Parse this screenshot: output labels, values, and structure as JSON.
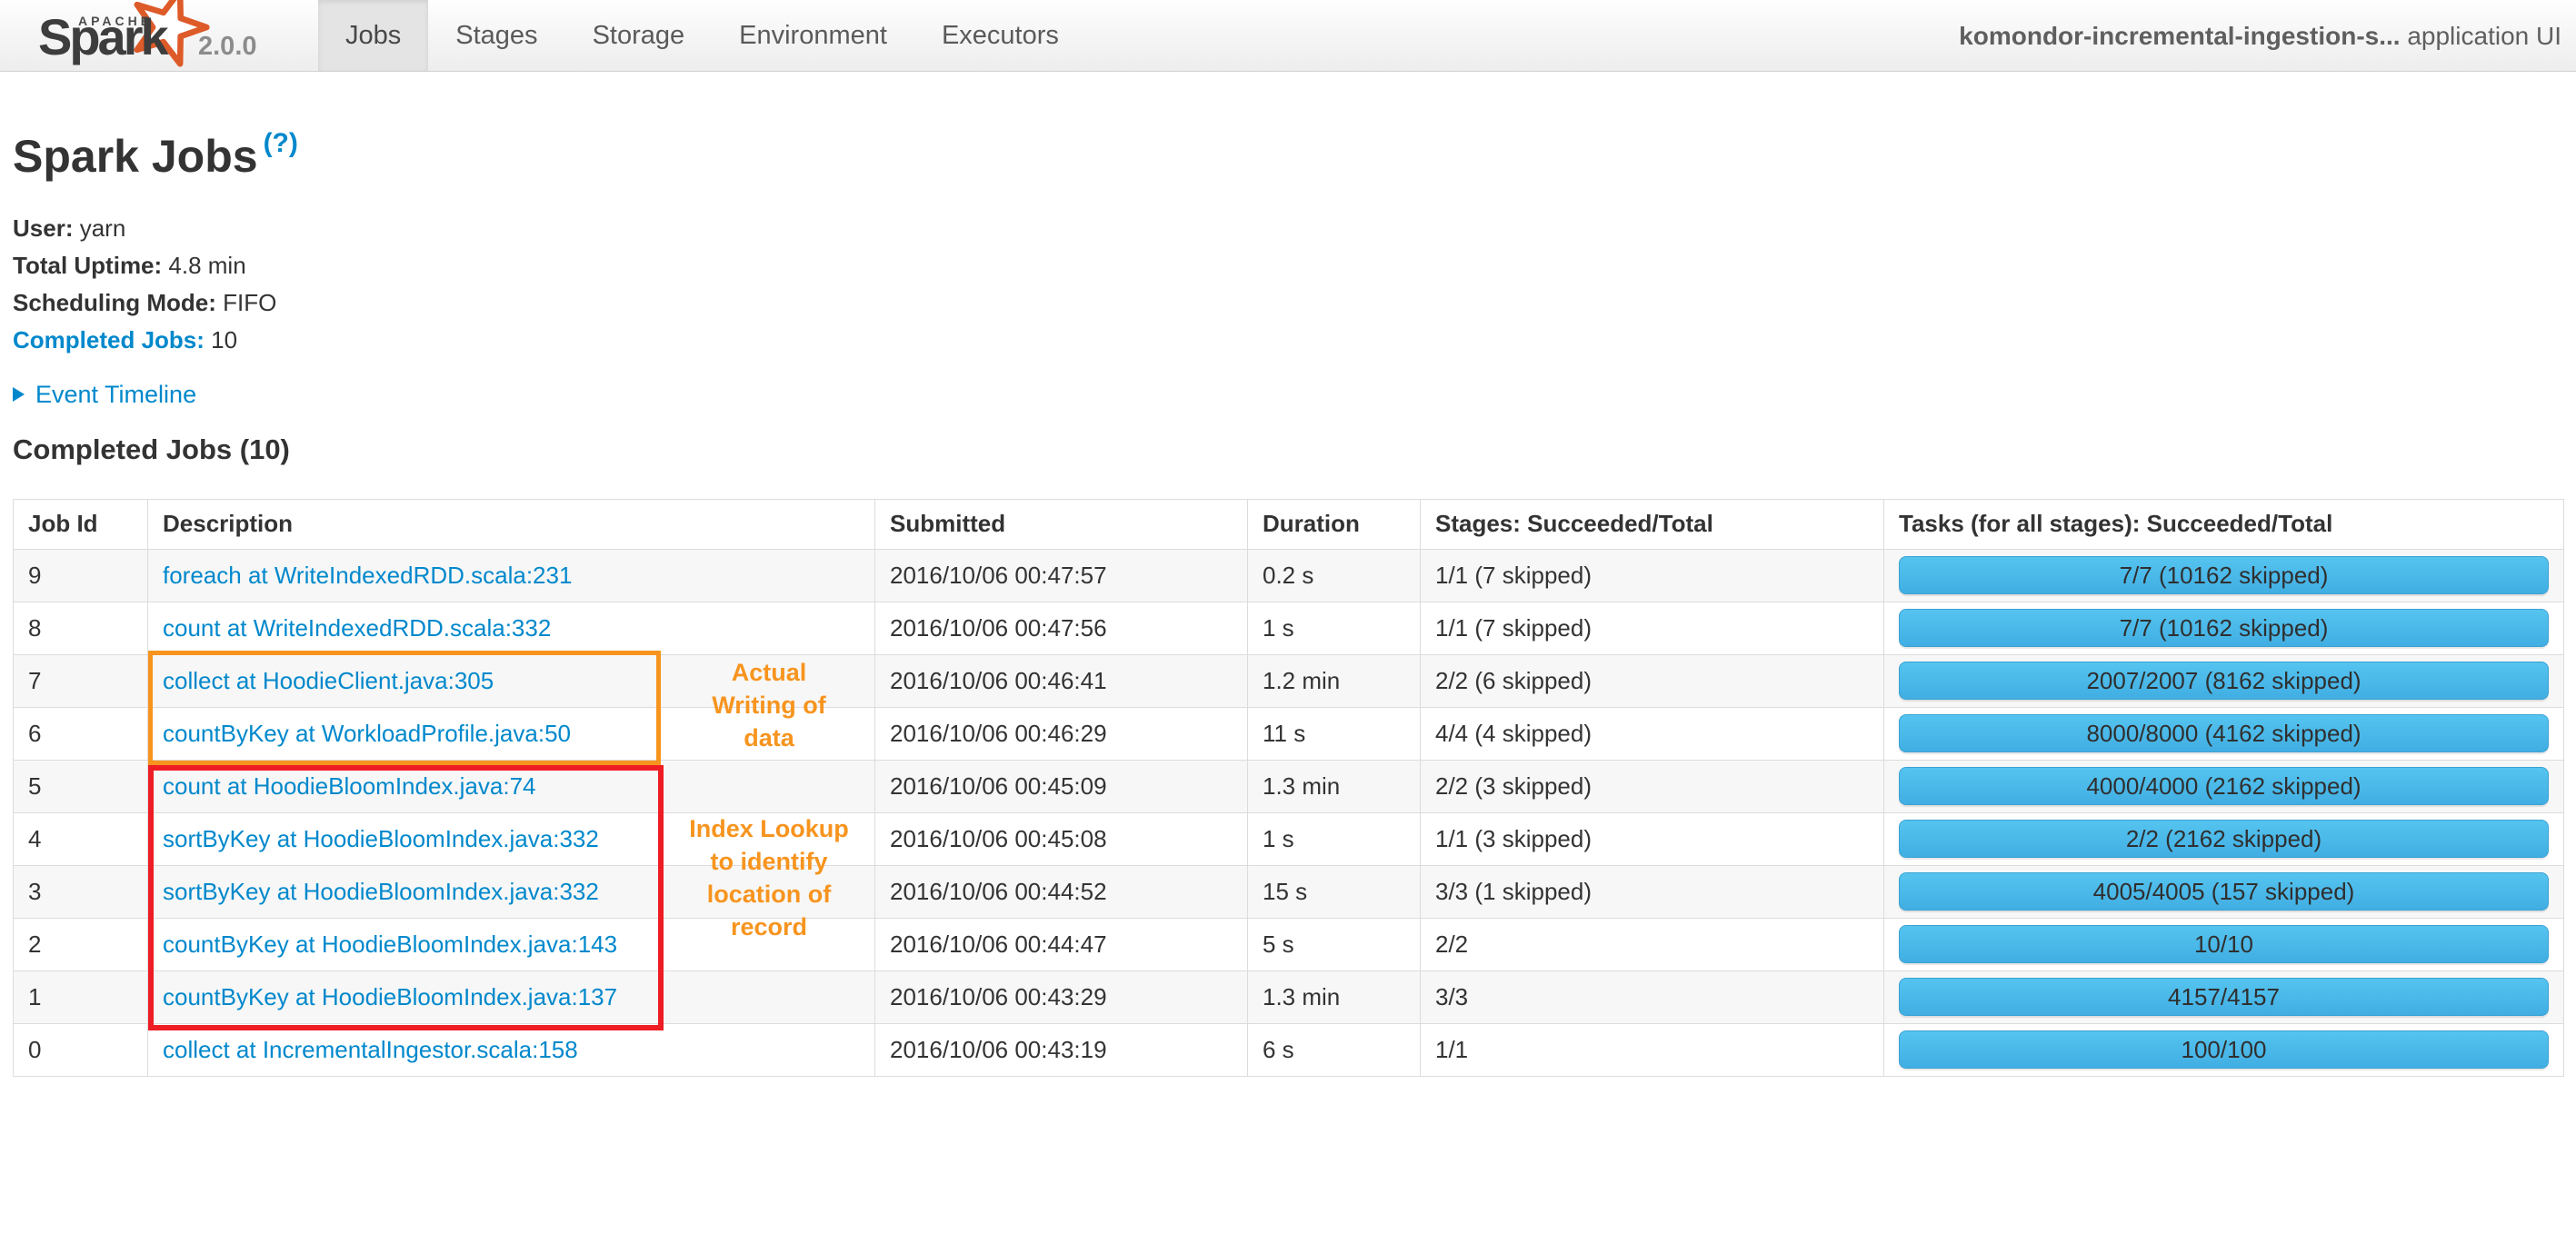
{
  "navbar": {
    "logo": {
      "apache": "APACHE",
      "name": "Spark",
      "version": "2.0.0"
    },
    "tabs": [
      {
        "label": "Jobs",
        "active": true
      },
      {
        "label": "Stages",
        "active": false
      },
      {
        "label": "Storage",
        "active": false
      },
      {
        "label": "Environment",
        "active": false
      },
      {
        "label": "Executors",
        "active": false
      }
    ],
    "app_name_bold": "komondor-incremental-ingestion-s...",
    "app_name_suffix": " application UI"
  },
  "page": {
    "title": "Spark Jobs",
    "help_label": "(?)",
    "stats": [
      {
        "label": "User:",
        "value": "yarn",
        "link": false
      },
      {
        "label": "Total Uptime:",
        "value": "4.8 min",
        "link": false
      },
      {
        "label": "Scheduling Mode:",
        "value": "FIFO",
        "link": false
      },
      {
        "label": "Completed Jobs:",
        "value": "10",
        "link": true
      }
    ],
    "event_timeline_label": "Event Timeline",
    "section_title": "Completed Jobs (10)"
  },
  "table": {
    "headers": [
      "Job Id",
      "Description",
      "Submitted",
      "Duration",
      "Stages: Succeeded/Total",
      "Tasks (for all stages): Succeeded/Total"
    ],
    "rows": [
      {
        "job_id": "9",
        "description": "foreach at WriteIndexedRDD.scala:231",
        "submitted": "2016/10/06 00:47:57",
        "duration": "0.2 s",
        "stages": "1/1 (7 skipped)",
        "tasks": "7/7 (10162 skipped)"
      },
      {
        "job_id": "8",
        "description": "count at WriteIndexedRDD.scala:332",
        "submitted": "2016/10/06 00:47:56",
        "duration": "1 s",
        "stages": "1/1 (7 skipped)",
        "tasks": "7/7 (10162 skipped)"
      },
      {
        "job_id": "7",
        "description": "collect at HoodieClient.java:305",
        "submitted": "2016/10/06 00:46:41",
        "duration": "1.2 min",
        "stages": "2/2 (6 skipped)",
        "tasks": "2007/2007 (8162 skipped)"
      },
      {
        "job_id": "6",
        "description": "countByKey at WorkloadProfile.java:50",
        "submitted": "2016/10/06 00:46:29",
        "duration": "11 s",
        "stages": "4/4 (4 skipped)",
        "tasks": "8000/8000 (4162 skipped)"
      },
      {
        "job_id": "5",
        "description": "count at HoodieBloomIndex.java:74",
        "submitted": "2016/10/06 00:45:09",
        "duration": "1.3 min",
        "stages": "2/2 (3 skipped)",
        "tasks": "4000/4000 (2162 skipped)"
      },
      {
        "job_id": "4",
        "description": "sortByKey at HoodieBloomIndex.java:332",
        "submitted": "2016/10/06 00:45:08",
        "duration": "1 s",
        "stages": "1/1 (3 skipped)",
        "tasks": "2/2 (2162 skipped)"
      },
      {
        "job_id": "3",
        "description": "sortByKey at HoodieBloomIndex.java:332",
        "submitted": "2016/10/06 00:44:52",
        "duration": "15 s",
        "stages": "3/3 (1 skipped)",
        "tasks": "4005/4005 (157 skipped)"
      },
      {
        "job_id": "2",
        "description": "countByKey at HoodieBloomIndex.java:143",
        "submitted": "2016/10/06 00:44:47",
        "duration": "5 s",
        "stages": "2/2",
        "tasks": "10/10"
      },
      {
        "job_id": "1",
        "description": "countByKey at HoodieBloomIndex.java:137",
        "submitted": "2016/10/06 00:43:29",
        "duration": "1.3 min",
        "stages": "3/3",
        "tasks": "4157/4157"
      },
      {
        "job_id": "0",
        "description": "collect at IncrementalIngestor.scala:158",
        "submitted": "2016/10/06 00:43:19",
        "duration": "6 s",
        "stages": "1/1",
        "tasks": "100/100"
      }
    ]
  },
  "annotations": {
    "writing": {
      "text": "Actual Writing of data",
      "lines": [
        "Actual",
        "Writing of",
        "data"
      ],
      "box_color": "#f7941e",
      "text_color": "#f7941e"
    },
    "index_lookup": {
      "text": "Index Lookup to identify location of record",
      "lines": [
        "Index Lookup",
        "to identify",
        "location of",
        "record"
      ],
      "box_color": "#ee1d23",
      "text_color": "#f7941e"
    }
  },
  "colors": {
    "link_blue": "#0088cc",
    "progress_bar_top": "#55c4ef",
    "progress_bar_bottom": "#41aee3",
    "annotation_orange": "#f7941e",
    "annotation_red": "#ee1d23",
    "active_tab_bg": "#e4e4e4"
  }
}
